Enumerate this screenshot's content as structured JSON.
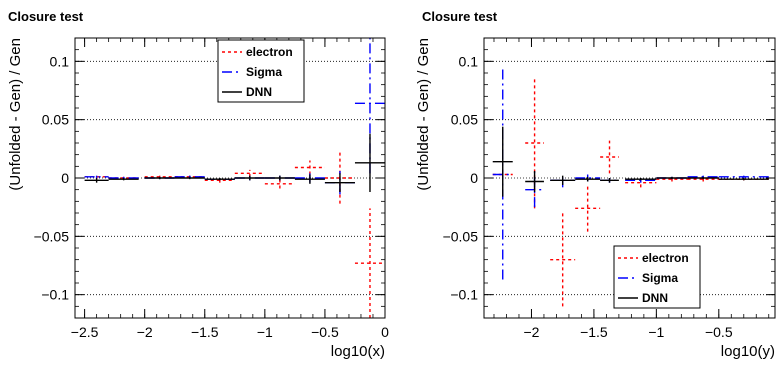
{
  "chart_data": [
    {
      "type": "scatter",
      "title": "Closure test",
      "xlabel": "log10(x)",
      "ylabel": "(Unfolded - Gen) / Gen",
      "xlim": [
        -2.58,
        0.0
      ],
      "ylim": [
        -0.12,
        0.12
      ],
      "x_ticks": [
        -2.5,
        -2,
        -1.5,
        -1,
        -0.5,
        0
      ],
      "x_tick_labels": [
        "−2.5",
        "−2",
        "−1.5",
        "−1",
        "−0.5",
        "0"
      ],
      "y_ticks": [
        -0.1,
        -0.05,
        0,
        0.05,
        0.1
      ],
      "y_tick_labels": [
        "−0.1",
        "−0.05",
        "0",
        "0.05",
        "0.1"
      ],
      "grid": "horizontal dotted",
      "legend_position": "top-right",
      "series": [
        {
          "name": "electron",
          "color": "#ff0000",
          "style": "dotted",
          "points": [
            {
              "x": -2.4,
              "y": 0.001,
              "xerr": 0.1,
              "yerr": 0.002
            },
            {
              "x": -2.175,
              "y": 0.0,
              "xerr": 0.125,
              "yerr": 0.001
            },
            {
              "x": -1.875,
              "y": 0.001,
              "xerr": 0.125,
              "yerr": 0.001
            },
            {
              "x": -1.625,
              "y": 0.001,
              "xerr": 0.125,
              "yerr": 0.001
            },
            {
              "x": -1.375,
              "y": -0.002,
              "xerr": 0.125,
              "yerr": 0.002
            },
            {
              "x": -1.125,
              "y": 0.004,
              "xerr": 0.125,
              "yerr": 0.003
            },
            {
              "x": -0.875,
              "y": -0.005,
              "xerr": 0.125,
              "yerr": 0.004
            },
            {
              "x": -0.625,
              "y": 0.009,
              "xerr": 0.125,
              "yerr": 0.006
            },
            {
              "x": -0.375,
              "y": 0.0,
              "xerr": 0.125,
              "yerr": 0.022
            },
            {
              "x": -0.125,
              "y": -0.073,
              "xerr": 0.125,
              "yerr": 0.047
            }
          ]
        },
        {
          "name": "Sigma",
          "color": "#0000ff",
          "style": "dashed",
          "points": [
            {
              "x": -2.4,
              "y": 0.001,
              "xerr": 0.1,
              "yerr": 0.001
            },
            {
              "x": -2.175,
              "y": 0.0,
              "xerr": 0.125,
              "yerr": 0.001
            },
            {
              "x": -1.875,
              "y": 0.0,
              "xerr": 0.125,
              "yerr": 0.001
            },
            {
              "x": -1.625,
              "y": 0.001,
              "xerr": 0.125,
              "yerr": 0.001
            },
            {
              "x": -1.375,
              "y": -0.001,
              "xerr": 0.125,
              "yerr": 0.001
            },
            {
              "x": -1.125,
              "y": 0.0,
              "xerr": 0.125,
              "yerr": 0.002
            },
            {
              "x": -0.875,
              "y": 0.0,
              "xerr": 0.125,
              "yerr": 0.002
            },
            {
              "x": -0.625,
              "y": 0.0,
              "xerr": 0.125,
              "yerr": 0.004
            },
            {
              "x": -0.375,
              "y": -0.004,
              "xerr": 0.125,
              "yerr": 0.01
            },
            {
              "x": -0.125,
              "y": 0.064,
              "xerr": 0.125,
              "yerr": 0.06
            }
          ]
        },
        {
          "name": "DNN",
          "color": "#000000",
          "style": "solid",
          "points": [
            {
              "x": -2.4,
              "y": -0.002,
              "xerr": 0.1,
              "yerr": 0.002
            },
            {
              "x": -2.175,
              "y": -0.001,
              "xerr": 0.125,
              "yerr": 0.001
            },
            {
              "x": -1.875,
              "y": 0.0,
              "xerr": 0.125,
              "yerr": 0.001
            },
            {
              "x": -1.625,
              "y": 0.0,
              "xerr": 0.125,
              "yerr": 0.001
            },
            {
              "x": -1.375,
              "y": -0.001,
              "xerr": 0.125,
              "yerr": 0.001
            },
            {
              "x": -1.125,
              "y": 0.0,
              "xerr": 0.125,
              "yerr": 0.002
            },
            {
              "x": -0.875,
              "y": 0.0,
              "xerr": 0.125,
              "yerr": 0.002
            },
            {
              "x": -0.625,
              "y": -0.001,
              "xerr": 0.125,
              "yerr": 0.004
            },
            {
              "x": -0.375,
              "y": -0.004,
              "xerr": 0.125,
              "yerr": 0.008
            },
            {
              "x": -0.125,
              "y": 0.013,
              "xerr": 0.125,
              "yerr": 0.025
            }
          ]
        }
      ]
    },
    {
      "type": "scatter",
      "title": "Closure test",
      "xlabel": "log10(y)",
      "ylabel": "(Unfolded - Gen) / Gen",
      "xlim": [
        -2.38,
        -0.05
      ],
      "ylim": [
        -0.12,
        0.12
      ],
      "x_ticks": [
        -2,
        -1.5,
        -1,
        -0.5
      ],
      "x_tick_labels": [
        "−2",
        "−1.5",
        "−1",
        "−0.5"
      ],
      "y_ticks": [
        -0.1,
        -0.05,
        0,
        0.05,
        0.1
      ],
      "y_tick_labels": [
        "−0.1",
        "−0.05",
        "0",
        "0.05",
        "0.1"
      ],
      "grid": "horizontal dotted",
      "legend_position": "bottom-right",
      "series": [
        {
          "name": "electron",
          "color": "#ff0000",
          "style": "dotted",
          "points": [
            {
              "x": -2.23,
              "y": 0.003,
              "xerr": 0.08,
              "yerr": 0.003
            },
            {
              "x": -1.975,
              "y": 0.03,
              "xerr": 0.075,
              "yerr": 0.056
            },
            {
              "x": -1.75,
              "y": -0.07,
              "xerr": 0.1,
              "yerr": 0.04
            },
            {
              "x": -1.55,
              "y": -0.026,
              "xerr": 0.1,
              "yerr": 0.02
            },
            {
              "x": -1.375,
              "y": 0.018,
              "xerr": 0.075,
              "yerr": 0.014
            },
            {
              "x": -1.125,
              "y": -0.004,
              "xerr": 0.125,
              "yerr": 0.004
            },
            {
              "x": -0.875,
              "y": -0.001,
              "xerr": 0.125,
              "yerr": 0.002
            },
            {
              "x": -0.625,
              "y": -0.001,
              "xerr": 0.125,
              "yerr": 0.002
            },
            {
              "x": -0.3,
              "y": -0.001,
              "xerr": 0.2,
              "yerr": 0.001
            }
          ]
        },
        {
          "name": "Sigma",
          "color": "#0000ff",
          "style": "dashed",
          "points": [
            {
              "x": -2.23,
              "y": 0.003,
              "xerr": 0.08,
              "yerr": 0.09
            },
            {
              "x": -1.975,
              "y": -0.01,
              "xerr": 0.075,
              "yerr": 0.015
            },
            {
              "x": -1.75,
              "y": -0.002,
              "xerr": 0.1,
              "yerr": 0.006
            },
            {
              "x": -1.55,
              "y": 0.0,
              "xerr": 0.1,
              "yerr": 0.003
            },
            {
              "x": -1.375,
              "y": -0.002,
              "xerr": 0.075,
              "yerr": 0.002
            },
            {
              "x": -1.125,
              "y": -0.002,
              "xerr": 0.125,
              "yerr": 0.002
            },
            {
              "x": -0.875,
              "y": 0.0,
              "xerr": 0.125,
              "yerr": 0.001
            },
            {
              "x": -0.625,
              "y": 0.001,
              "xerr": 0.125,
              "yerr": 0.001
            },
            {
              "x": -0.3,
              "y": 0.001,
              "xerr": 0.2,
              "yerr": 0.001
            }
          ]
        },
        {
          "name": "DNN",
          "color": "#000000",
          "style": "solid",
          "points": [
            {
              "x": -2.23,
              "y": 0.014,
              "xerr": 0.08,
              "yerr": 0.03
            },
            {
              "x": -1.975,
              "y": -0.003,
              "xerr": 0.075,
              "yerr": 0.009
            },
            {
              "x": -1.75,
              "y": -0.002,
              "xerr": 0.1,
              "yerr": 0.004
            },
            {
              "x": -1.55,
              "y": -0.001,
              "xerr": 0.1,
              "yerr": 0.002
            },
            {
              "x": -1.375,
              "y": -0.002,
              "xerr": 0.075,
              "yerr": 0.002
            },
            {
              "x": -1.125,
              "y": -0.001,
              "xerr": 0.125,
              "yerr": 0.001
            },
            {
              "x": -0.875,
              "y": 0.0,
              "xerr": 0.125,
              "yerr": 0.001
            },
            {
              "x": -0.625,
              "y": 0.0,
              "xerr": 0.125,
              "yerr": 0.001
            },
            {
              "x": -0.3,
              "y": -0.001,
              "xerr": 0.2,
              "yerr": 0.001
            }
          ]
        }
      ]
    }
  ]
}
